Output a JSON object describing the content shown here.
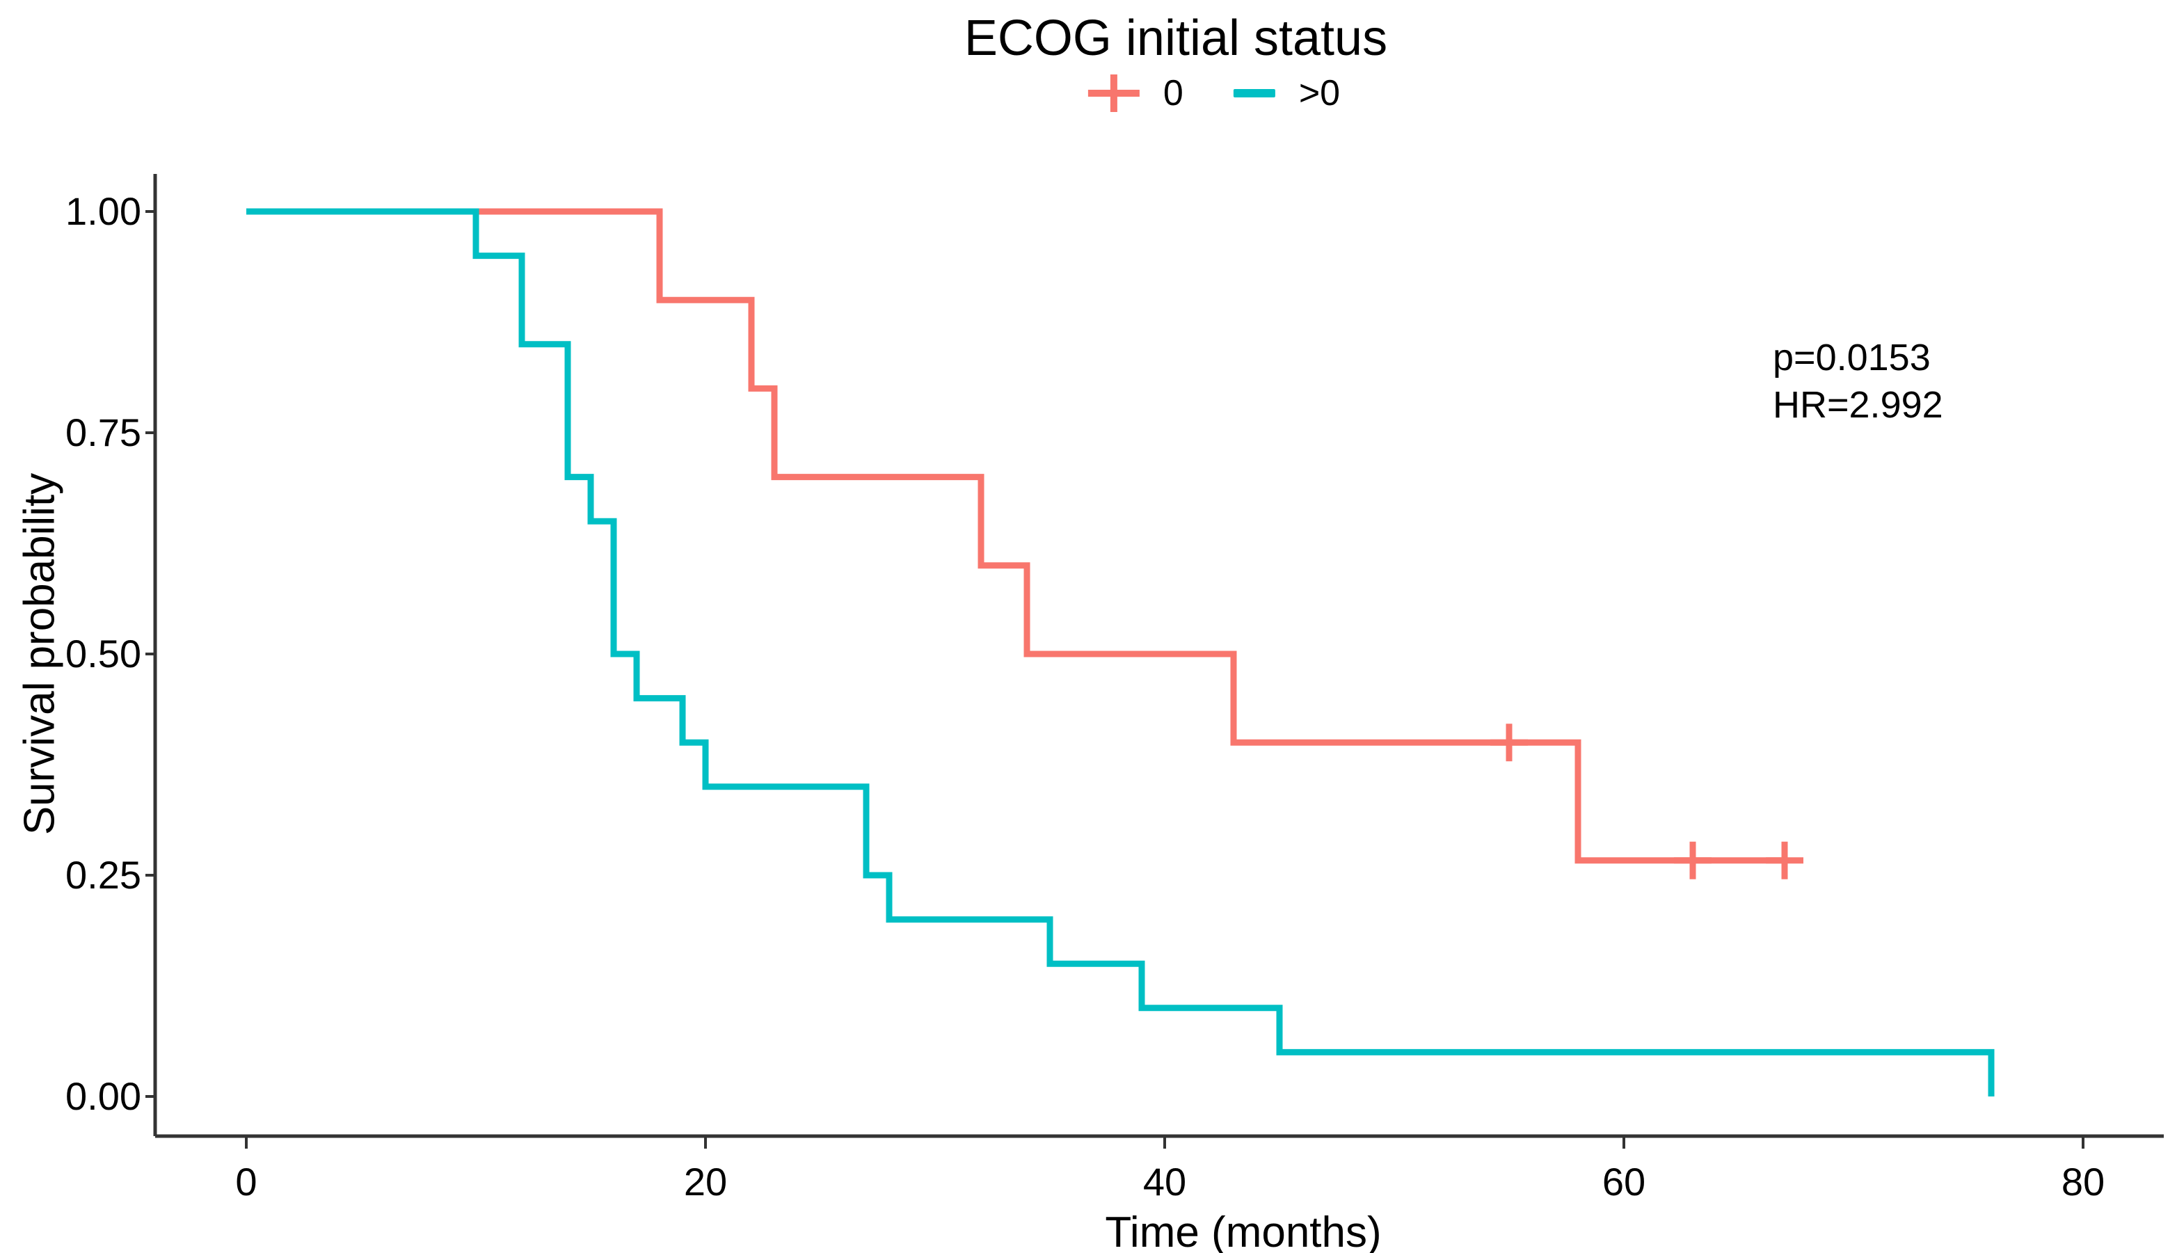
{
  "chart_data": {
    "type": "line",
    "variant": "kaplan-meier-step",
    "title": "ECOG initial status",
    "xlabel": "Time (months)",
    "ylabel": "Survival probability",
    "xlim": [
      0,
      80
    ],
    "ylim": [
      0.0,
      1.0
    ],
    "grid": false,
    "legend_position": "top-center",
    "x_ticks": [
      {
        "v": 0,
        "label": "0"
      },
      {
        "v": 20,
        "label": "20"
      },
      {
        "v": 40,
        "label": "40"
      },
      {
        "v": 60,
        "label": "60"
      },
      {
        "v": 80,
        "label": "80"
      }
    ],
    "y_ticks": [
      {
        "v": 0.0,
        "label": "0.00"
      },
      {
        "v": 0.25,
        "label": "0.25"
      },
      {
        "v": 0.5,
        "label": "0.50"
      },
      {
        "v": 0.75,
        "label": "0.75"
      },
      {
        "v": 1.0,
        "label": "1.00"
      }
    ],
    "annotation": [
      "p=0.0153",
      "HR=2.992"
    ],
    "legend": [
      {
        "label": "0",
        "color": "#F8766D",
        "key": "line-with-plus"
      },
      {
        "label": ">0",
        "color": "#00BFC4",
        "key": "line"
      }
    ],
    "series": [
      {
        "name": "0",
        "color": "#F8766D",
        "steps": [
          [
            0,
            1.0
          ],
          [
            18,
            0.9
          ],
          [
            22,
            0.8
          ],
          [
            23,
            0.7
          ],
          [
            32,
            0.6
          ],
          [
            34,
            0.5
          ],
          [
            43,
            0.4
          ],
          [
            58,
            0.2667
          ]
        ],
        "end_time": 67,
        "censor_marks": [
          [
            55,
            0.4
          ],
          [
            63,
            0.2667
          ],
          [
            67,
            0.2667
          ]
        ]
      },
      {
        "name": ">0",
        "color": "#00BFC4",
        "steps": [
          [
            0,
            1.0
          ],
          [
            10,
            0.95
          ],
          [
            12,
            0.85
          ],
          [
            14,
            0.7
          ],
          [
            15,
            0.65
          ],
          [
            16,
            0.5
          ],
          [
            17,
            0.45
          ],
          [
            19,
            0.4
          ],
          [
            20,
            0.35
          ],
          [
            27,
            0.25
          ],
          [
            28,
            0.2
          ],
          [
            35,
            0.15
          ],
          [
            39,
            0.1
          ],
          [
            45,
            0.05
          ],
          [
            76,
            0.0
          ]
        ],
        "end_time": 76,
        "censor_marks": []
      }
    ],
    "colors": {
      "axis": "#333333",
      "text": "#000000",
      "background": "#FFFFFF"
    }
  }
}
